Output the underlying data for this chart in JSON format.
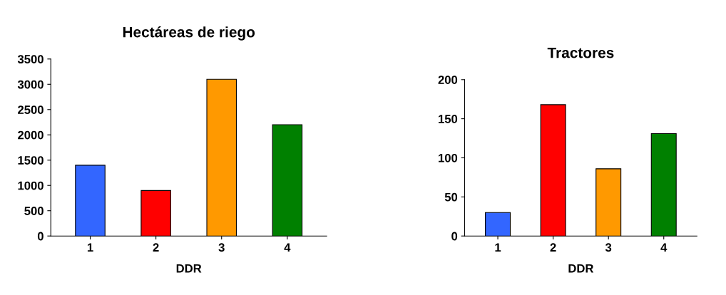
{
  "chart_data": [
    {
      "type": "bar",
      "title": "Hectáreas de riego",
      "xlabel": "DDR",
      "categories": [
        "1",
        "2",
        "3",
        "4"
      ],
      "values": [
        1400,
        900,
        3100,
        2200
      ],
      "colors": [
        "#3366ff",
        "#ff0000",
        "#ff9900",
        "#008000"
      ],
      "ylim": [
        0,
        3500
      ],
      "yticks": [
        0,
        500,
        1000,
        1500,
        2000,
        2500,
        3000,
        3500
      ],
      "grid": false
    },
    {
      "type": "bar",
      "title": "Tractores",
      "xlabel": "DDR",
      "categories": [
        "1",
        "2",
        "3",
        "4"
      ],
      "values": [
        30,
        168,
        86,
        131
      ],
      "colors": [
        "#3366ff",
        "#ff0000",
        "#ff9900",
        "#008000"
      ],
      "ylim": [
        0,
        200
      ],
      "yticks": [
        0,
        50,
        100,
        150,
        200
      ],
      "grid": false
    }
  ]
}
